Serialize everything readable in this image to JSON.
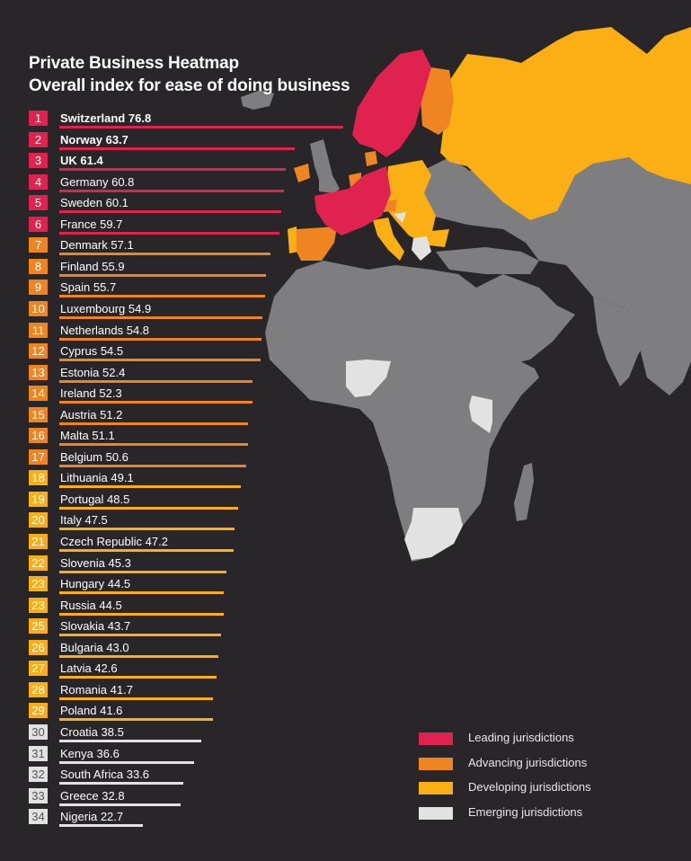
{
  "header": {
    "title": "Private Business Heatmap",
    "subtitle": "Overall index for ease of doing business"
  },
  "colors": {
    "background": "#282628",
    "leading": "#E0224F",
    "advancing": "#EE8520",
    "developing": "#FBAF14",
    "emerging": "#E2E2E2",
    "no_data": "#7E7E80"
  },
  "legend": {
    "items": [
      {
        "label": "Leading jurisdictions",
        "tier": "leading"
      },
      {
        "label": "Advancing jurisdictions",
        "tier": "advancing"
      },
      {
        "label": "Developing jurisdictions",
        "tier": "developing"
      },
      {
        "label": "Emerging jurisdictions",
        "tier": "emerging"
      }
    ]
  },
  "chart_data": {
    "type": "bar",
    "orientation": "horizontal",
    "title": "Private Business Heatmap",
    "subtitle": "Overall index for ease of doing business",
    "xlabel": "",
    "ylabel": "",
    "grid": false,
    "legend_position": "bottom-right",
    "categories": [
      "Switzerland",
      "Norway",
      "UK",
      "Germany",
      "Sweden",
      "France",
      "Denmark",
      "Finland",
      "Spain",
      "Luxembourg",
      "Netherlands",
      "Cyprus",
      "Estonia",
      "Ireland",
      "Austria",
      "Malta",
      "Belgium",
      "Lithuania",
      "Portugal",
      "Italy",
      "Czech Republic",
      "Slovenia",
      "Hungary",
      "Russia",
      "Slovakia",
      "Bulgaria",
      "Latvia",
      "Romania",
      "Poland",
      "Croatia",
      "Kenya",
      "South Africa",
      "Greece",
      "Nigeria"
    ],
    "values": [
      76.8,
      63.7,
      61.4,
      60.8,
      60.1,
      59.7,
      57.1,
      55.9,
      55.7,
      54.9,
      54.8,
      54.5,
      52.4,
      52.3,
      51.2,
      51.1,
      50.6,
      49.1,
      48.5,
      47.5,
      47.2,
      45.3,
      44.5,
      44.5,
      43.7,
      43.0,
      42.6,
      41.7,
      41.6,
      38.5,
      36.6,
      33.6,
      32.8,
      22.7
    ],
    "ranks": [
      "1",
      "2",
      "3",
      "4",
      "5",
      "6",
      "7",
      "8",
      "9",
      "10",
      "11",
      "12",
      "13",
      "14",
      "15",
      "16",
      "17",
      "18",
      "19",
      "20",
      "21",
      "22",
      "23",
      "23",
      "25",
      "26",
      "27",
      "28",
      "29",
      "30",
      "31",
      "32",
      "33",
      "34"
    ],
    "tiers": [
      "leading",
      "leading",
      "leading",
      "leading",
      "leading",
      "leading",
      "advancing",
      "advancing",
      "advancing",
      "advancing",
      "advancing",
      "advancing",
      "advancing",
      "advancing",
      "advancing",
      "advancing",
      "advancing",
      "developing",
      "developing",
      "developing",
      "developing",
      "developing",
      "developing",
      "developing",
      "developing",
      "developing",
      "developing",
      "developing",
      "developing",
      "emerging",
      "emerging",
      "emerging",
      "emerging",
      "emerging"
    ],
    "legend": [
      "Leading jurisdictions",
      "Advancing jurisdictions",
      "Developing jurisdictions",
      "Emerging jurisdictions"
    ]
  }
}
